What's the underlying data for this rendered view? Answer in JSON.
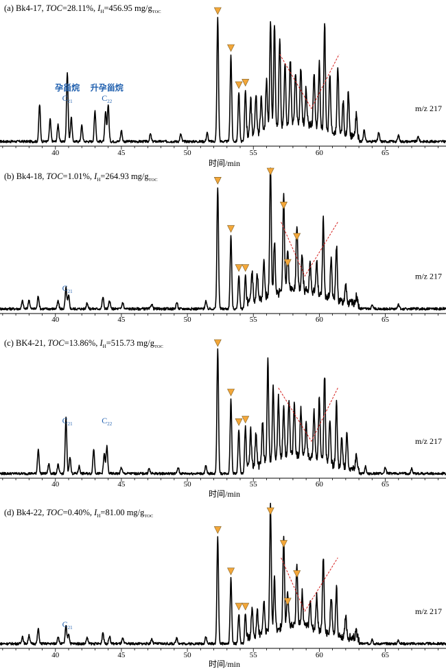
{
  "chart_data": [
    {
      "type": "line",
      "panel_label": "(a)",
      "sample": "Bk4-17",
      "toc": "28.11%",
      "ih": "456.95",
      "ion": "m/z 217",
      "xlabel": "时间/min",
      "x_ticks": [
        40,
        45,
        50,
        55,
        60,
        65
      ],
      "xlim": [
        35.8,
        69.6
      ],
      "annotations": [
        {
          "x": 40.9,
          "label": "孕甾烷",
          "sub_base": "C",
          "sub": "21"
        },
        {
          "x": 43.9,
          "label": "升孕甾烷",
          "sub_base": "C",
          "sub": "22"
        }
      ],
      "marker_times": [
        52.3,
        53.3,
        53.9,
        54.4
      ],
      "v_lines": [
        [
          57.0,
          59.4,
          61.5
        ]
      ],
      "peaks": [
        [
          38.8,
          0.3
        ],
        [
          39.6,
          0.18
        ],
        [
          40.2,
          0.14
        ],
        [
          40.9,
          0.56
        ],
        [
          41.2,
          0.2
        ],
        [
          42.0,
          0.13
        ],
        [
          43.0,
          0.25
        ],
        [
          43.8,
          0.24
        ],
        [
          44.0,
          0.3
        ],
        [
          45.0,
          0.09
        ],
        [
          47.2,
          0.06
        ],
        [
          49.5,
          0.06
        ],
        [
          51.5,
          0.07
        ],
        [
          52.3,
          1.0
        ],
        [
          53.3,
          0.7
        ],
        [
          53.9,
          0.4
        ],
        [
          54.4,
          0.42
        ],
        [
          54.8,
          0.3
        ],
        [
          55.2,
          0.3
        ],
        [
          55.6,
          0.28
        ],
        [
          56.0,
          0.42
        ],
        [
          56.3,
          0.88
        ],
        [
          56.6,
          0.84
        ],
        [
          57.0,
          0.72
        ],
        [
          57.4,
          0.5
        ],
        [
          57.8,
          0.52
        ],
        [
          58.2,
          0.42
        ],
        [
          58.6,
          0.46
        ],
        [
          59.0,
          0.3
        ],
        [
          59.6,
          0.44
        ],
        [
          60.0,
          0.52
        ],
        [
          60.4,
          0.86
        ],
        [
          60.8,
          0.48
        ],
        [
          61.4,
          0.56
        ],
        [
          61.8,
          0.26
        ],
        [
          62.2,
          0.36
        ],
        [
          62.8,
          0.18
        ],
        [
          63.4,
          0.1
        ],
        [
          64.5,
          0.07
        ],
        [
          66.0,
          0.05
        ],
        [
          67.5,
          0.04
        ]
      ]
    },
    {
      "type": "line",
      "panel_label": "(b)",
      "sample": "Bk4-18",
      "toc": "1.01%",
      "ih": "264.93",
      "ion": "m/z 217",
      "xlabel": "",
      "x_ticks": [
        40,
        45,
        50,
        55,
        60,
        65
      ],
      "xlim": [
        35.8,
        69.6
      ],
      "annotations": [
        {
          "x": 40.9,
          "label": "",
          "sub_base": "C",
          "sub": "21"
        }
      ],
      "marker_times": [
        52.3,
        53.3,
        53.9,
        54.4,
        56.3,
        57.3,
        57.6,
        58.3
      ],
      "v_lines": [
        [
          57.1,
          58.9,
          61.4
        ]
      ],
      "peaks": [
        [
          37.5,
          0.06
        ],
        [
          38.0,
          0.07
        ],
        [
          38.7,
          0.1
        ],
        [
          40.2,
          0.06
        ],
        [
          40.8,
          0.16
        ],
        [
          41.0,
          0.1
        ],
        [
          42.4,
          0.05
        ],
        [
          43.6,
          0.09
        ],
        [
          44.1,
          0.06
        ],
        [
          45.1,
          0.05
        ],
        [
          47.3,
          0.04
        ],
        [
          49.2,
          0.05
        ],
        [
          51.4,
          0.06
        ],
        [
          52.3,
          0.93
        ],
        [
          53.3,
          0.56
        ],
        [
          53.9,
          0.26
        ],
        [
          54.4,
          0.26
        ],
        [
          54.9,
          0.24
        ],
        [
          55.3,
          0.2
        ],
        [
          55.8,
          0.28
        ],
        [
          56.3,
          1.0
        ],
        [
          56.6,
          0.42
        ],
        [
          57.3,
          0.74
        ],
        [
          57.6,
          0.3
        ],
        [
          58.3,
          0.5
        ],
        [
          58.7,
          0.28
        ],
        [
          59.3,
          0.22
        ],
        [
          59.8,
          0.26
        ],
        [
          60.3,
          0.58
        ],
        [
          60.9,
          0.3
        ],
        [
          61.3,
          0.42
        ],
        [
          62.0,
          0.16
        ],
        [
          62.8,
          0.06
        ],
        [
          64.0,
          0.04
        ],
        [
          66.0,
          0.03
        ]
      ]
    },
    {
      "type": "line",
      "panel_label": "(c)",
      "sample": "BK4-21",
      "toc": "13.86%",
      "ih": "515.73",
      "ion": "m/z 217",
      "xlabel": "时间/min",
      "x_ticks": [
        40,
        45,
        50,
        55,
        60,
        65
      ],
      "xlim": [
        35.8,
        69.6
      ],
      "annotations": [
        {
          "x": 40.9,
          "label": "",
          "sub_base": "C",
          "sub": "21"
        },
        {
          "x": 43.9,
          "label": "",
          "sub_base": "C",
          "sub": "22"
        }
      ],
      "marker_times": [
        52.3,
        53.3,
        53.9,
        54.4
      ],
      "v_lines": [
        [
          56.9,
          59.4,
          61.4
        ]
      ],
      "peaks": [
        [
          38.7,
          0.2
        ],
        [
          39.5,
          0.08
        ],
        [
          40.2,
          0.07
        ],
        [
          40.8,
          0.45
        ],
        [
          41.1,
          0.14
        ],
        [
          41.8,
          0.06
        ],
        [
          42.9,
          0.2
        ],
        [
          43.7,
          0.16
        ],
        [
          43.9,
          0.22
        ],
        [
          45.0,
          0.05
        ],
        [
          47.1,
          0.04
        ],
        [
          49.3,
          0.05
        ],
        [
          51.4,
          0.06
        ],
        [
          52.3,
          1.0
        ],
        [
          53.3,
          0.6
        ],
        [
          53.9,
          0.36
        ],
        [
          54.4,
          0.38
        ],
        [
          54.8,
          0.3
        ],
        [
          55.2,
          0.26
        ],
        [
          55.7,
          0.34
        ],
        [
          56.1,
          0.82
        ],
        [
          56.5,
          0.6
        ],
        [
          56.9,
          0.5
        ],
        [
          57.3,
          0.42
        ],
        [
          57.7,
          0.46
        ],
        [
          58.1,
          0.42
        ],
        [
          58.6,
          0.38
        ],
        [
          59.0,
          0.26
        ],
        [
          59.6,
          0.36
        ],
        [
          60.0,
          0.5
        ],
        [
          60.4,
          0.7
        ],
        [
          60.8,
          0.36
        ],
        [
          61.3,
          0.5
        ],
        [
          61.7,
          0.22
        ],
        [
          62.1,
          0.28
        ],
        [
          62.8,
          0.1
        ],
        [
          63.5,
          0.06
        ],
        [
          65.0,
          0.05
        ],
        [
          67.0,
          0.04
        ]
      ]
    },
    {
      "type": "line",
      "panel_label": "(d)",
      "sample": "Bk4-22",
      "toc": "0.40%",
      "ih": "81.00",
      "ion": "m/z 217",
      "xlabel": "时间/min",
      "x_ticks": [
        40,
        45,
        50,
        55,
        60,
        65
      ],
      "xlim": [
        35.8,
        69.6
      ],
      "annotations": [
        {
          "x": 40.9,
          "label": "",
          "sub_base": "C",
          "sub": "21"
        }
      ],
      "marker_times": [
        52.3,
        53.3,
        53.9,
        54.4,
        56.3,
        57.3,
        57.6,
        58.3
      ],
      "v_lines": [
        [
          57.1,
          58.9,
          61.4
        ]
      ],
      "peaks": [
        [
          37.5,
          0.06
        ],
        [
          38.0,
          0.07
        ],
        [
          38.7,
          0.12
        ],
        [
          40.2,
          0.06
        ],
        [
          40.8,
          0.14
        ],
        [
          41.0,
          0.08
        ],
        [
          42.4,
          0.05
        ],
        [
          43.6,
          0.09
        ],
        [
          44.1,
          0.06
        ],
        [
          45.1,
          0.04
        ],
        [
          47.3,
          0.04
        ],
        [
          49.2,
          0.05
        ],
        [
          51.4,
          0.06
        ],
        [
          52.3,
          0.85
        ],
        [
          53.3,
          0.52
        ],
        [
          53.9,
          0.24
        ],
        [
          54.4,
          0.24
        ],
        [
          54.9,
          0.22
        ],
        [
          55.3,
          0.2
        ],
        [
          55.8,
          0.26
        ],
        [
          56.3,
          1.0
        ],
        [
          56.6,
          0.4
        ],
        [
          57.3,
          0.74
        ],
        [
          57.6,
          0.28
        ],
        [
          58.3,
          0.5
        ],
        [
          58.7,
          0.26
        ],
        [
          59.3,
          0.2
        ],
        [
          59.8,
          0.26
        ],
        [
          60.3,
          0.6
        ],
        [
          60.9,
          0.3
        ],
        [
          61.3,
          0.4
        ],
        [
          62.0,
          0.16
        ],
        [
          62.8,
          0.06
        ],
        [
          64.0,
          0.04
        ],
        [
          66.0,
          0.03
        ]
      ]
    }
  ],
  "text": {
    "toc_label": "TOC",
    "ih_label": "I",
    "ih_sub": "H",
    "unit": "mg/g",
    "unit_sub": "TOC"
  },
  "colors": {
    "trace": "#000000",
    "marker_fill": "#f3a73a",
    "marker_stroke": "#7a5a1e",
    "annotation": "#1f5fae",
    "guide_line": "#d6201e"
  }
}
